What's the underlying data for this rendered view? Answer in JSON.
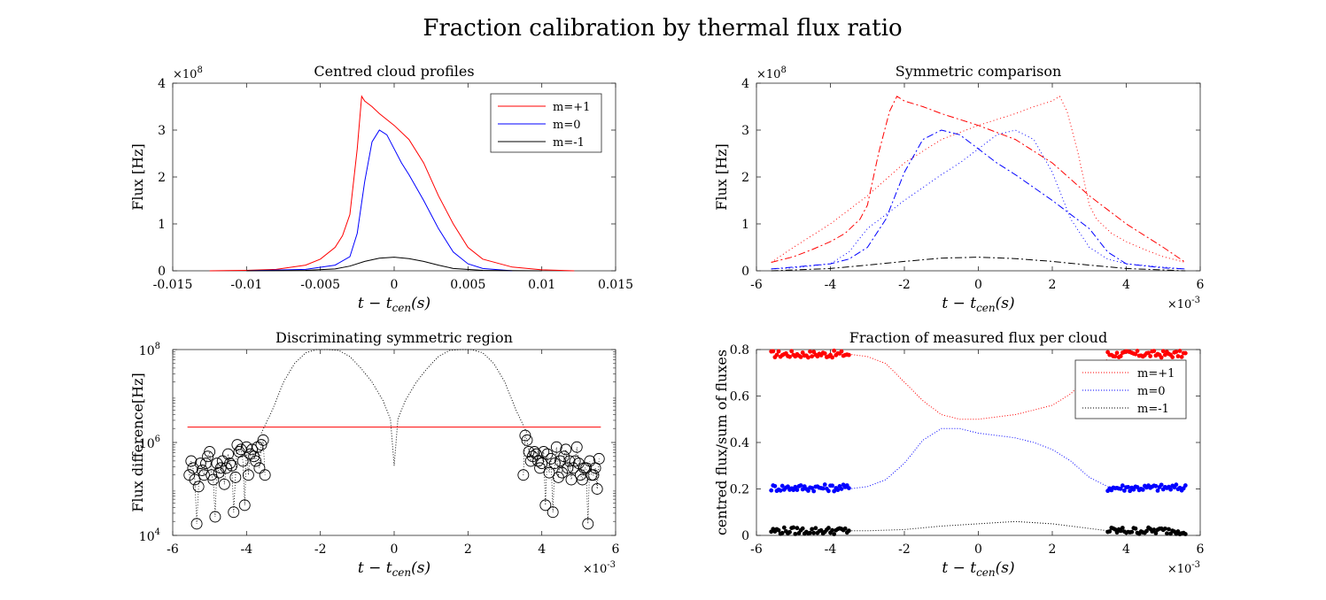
{
  "title": "Fraction calibration by thermal flux ratio",
  "chart_data": [
    {
      "type": "line",
      "title": "Centred cloud profiles",
      "xlabel_main": "t − t",
      "xlabel_sub": "cen",
      "xlabel_tail": "(s)",
      "ylabel": "Flux [Hz]",
      "xlim": [
        -0.015,
        0.015
      ],
      "ylim": [
        0,
        4
      ],
      "y_exponent": "×10",
      "y_exponent_power": "8",
      "xticks": [
        "-0.015",
        "-0.01",
        "-0.005",
        "0",
        "0.005",
        "0.01",
        "0.015"
      ],
      "xtick_values": [
        -0.015,
        -0.01,
        -0.005,
        0,
        0.005,
        0.01,
        0.015
      ],
      "yticks": [
        "0",
        "1",
        "2",
        "3",
        "4"
      ],
      "ytick_values": [
        0,
        1,
        2,
        3,
        4
      ],
      "legend": "top-right",
      "series": [
        {
          "name": "m=+1",
          "color": "#ff0000",
          "x": [
            -0.0125,
            -0.01,
            -0.008,
            -0.006,
            -0.005,
            -0.004,
            -0.0035,
            -0.003,
            -0.0025,
            -0.0022,
            -0.002,
            -0.0015,
            -0.001,
            0,
            0.001,
            0.002,
            0.003,
            0.004,
            0.005,
            0.006,
            0.008,
            0.01,
            0.0122
          ],
          "y": [
            0.0,
            0.01,
            0.03,
            0.12,
            0.25,
            0.5,
            0.75,
            1.2,
            2.6,
            3.72,
            3.62,
            3.5,
            3.35,
            3.1,
            2.8,
            2.3,
            1.6,
            1.0,
            0.5,
            0.25,
            0.08,
            0.02,
            0.0
          ]
        },
        {
          "name": "m=0",
          "color": "#0000ff",
          "x": [
            -0.01,
            -0.006,
            -0.004,
            -0.003,
            -0.0025,
            -0.002,
            -0.0015,
            -0.001,
            -0.0005,
            0,
            0.0005,
            0.001,
            0.002,
            0.003,
            0.004,
            0.005,
            0.006,
            0.008
          ],
          "y": [
            0.0,
            0.03,
            0.12,
            0.3,
            0.8,
            1.9,
            2.75,
            3.0,
            2.9,
            2.6,
            2.3,
            2.05,
            1.5,
            0.9,
            0.4,
            0.15,
            0.05,
            0.0
          ]
        },
        {
          "name": "m=-1",
          "color": "#000000",
          "x": [
            -0.01,
            -0.006,
            -0.004,
            -0.003,
            -0.002,
            -0.001,
            0,
            0.001,
            0.002,
            0.003,
            0.004,
            0.006,
            0.01
          ],
          "y": [
            0.0,
            0.01,
            0.04,
            0.1,
            0.2,
            0.27,
            0.29,
            0.26,
            0.2,
            0.12,
            0.05,
            0.01,
            0.0
          ]
        }
      ]
    },
    {
      "type": "line",
      "title": "Symmetric comparison",
      "xlabel_main": "t − t",
      "xlabel_sub": "cen",
      "xlabel_tail": "(s)",
      "ylabel": "Flux [Hz]",
      "xlim": [
        -6,
        6
      ],
      "ylim": [
        0,
        4
      ],
      "x_exponent": "×10",
      "x_exponent_power": "-3",
      "y_exponent": "×10",
      "y_exponent_power": "8",
      "xticks": [
        "-6",
        "-4",
        "-2",
        "0",
        "2",
        "4",
        "6"
      ],
      "xtick_values": [
        -6,
        -4,
        -2,
        0,
        2,
        4,
        6
      ],
      "yticks": [
        "0",
        "1",
        "2",
        "3",
        "4"
      ],
      "ytick_values": [
        0,
        1,
        2,
        3,
        4
      ],
      "series": [
        {
          "name": "",
          "color": "#ff0000",
          "dash": "8,3,2,3",
          "x": [
            -5.6,
            -5,
            -4.5,
            -4,
            -3.6,
            -3.2,
            -3,
            -2.7,
            -2.4,
            -2.2,
            -2,
            -1.5,
            -1,
            0,
            1,
            2,
            3,
            4,
            5,
            5.6
          ],
          "y": [
            0.18,
            0.3,
            0.45,
            0.62,
            0.8,
            1.1,
            1.4,
            2.5,
            3.4,
            3.72,
            3.62,
            3.5,
            3.35,
            3.1,
            2.8,
            2.3,
            1.6,
            1.0,
            0.5,
            0.18
          ]
        },
        {
          "name": "",
          "color": "#ff0000",
          "dash": "1,3",
          "x": [
            -5.6,
            -5,
            -4,
            -3,
            -2,
            -1,
            0,
            1,
            1.5,
            2,
            2.2,
            2.4,
            2.7,
            3,
            3.2,
            3.6,
            4,
            4.5,
            5,
            5.6
          ],
          "y": [
            0.18,
            0.5,
            1.0,
            1.6,
            2.3,
            2.8,
            3.1,
            3.35,
            3.5,
            3.62,
            3.72,
            3.4,
            2.5,
            1.4,
            1.1,
            0.8,
            0.62,
            0.45,
            0.3,
            0.18
          ]
        },
        {
          "name": "",
          "color": "#0000ff",
          "dash": "8,3,2,3",
          "x": [
            -5.6,
            -5,
            -4,
            -3.5,
            -3,
            -2.5,
            -2,
            -1.5,
            -1,
            -0.5,
            0,
            0.5,
            1,
            2,
            3,
            3.5,
            4,
            5,
            5.6
          ],
          "y": [
            0.04,
            0.08,
            0.15,
            0.25,
            0.5,
            1.1,
            2.1,
            2.8,
            3.0,
            2.9,
            2.6,
            2.3,
            2.05,
            1.5,
            0.9,
            0.4,
            0.15,
            0.06,
            0.04
          ]
        },
        {
          "name": "",
          "color": "#0000ff",
          "dash": "1,3",
          "x": [
            -5.6,
            -5,
            -4,
            -3.5,
            -3,
            -2,
            -1,
            -0.5,
            0,
            0.5,
            1,
            1.5,
            2,
            2.5,
            3,
            3.5,
            4,
            5,
            5.6
          ],
          "y": [
            0.04,
            0.06,
            0.15,
            0.4,
            0.9,
            1.5,
            2.05,
            2.3,
            2.6,
            2.9,
            3.0,
            2.8,
            2.1,
            1.1,
            0.5,
            0.25,
            0.15,
            0.08,
            0.04
          ]
        },
        {
          "name": "",
          "color": "#000000",
          "dash": "8,3,2,3",
          "x": [
            -5.6,
            -4,
            -3,
            -2,
            -1,
            0,
            1,
            2,
            3,
            4,
            5.6
          ],
          "y": [
            0.0,
            0.05,
            0.12,
            0.2,
            0.27,
            0.29,
            0.26,
            0.2,
            0.12,
            0.05,
            0.0
          ]
        }
      ]
    },
    {
      "type": "scatter",
      "title": "Discriminating symmetric region",
      "xlabel_main": "t − t",
      "xlabel_sub": "cen",
      "xlabel_tail": "(s)",
      "ylabel": "Flux difference[Hz]",
      "xlim": [
        -6,
        6
      ],
      "ylog": true,
      "ylim_log10": [
        4,
        8
      ],
      "x_exponent": "×10",
      "x_exponent_power": "-3",
      "xticks": [
        "-6",
        "-4",
        "-2",
        "0",
        "2",
        "4",
        "6"
      ],
      "xtick_values": [
        -6,
        -4,
        -2,
        0,
        2,
        4,
        6
      ],
      "yticks": [
        {
          "base": "10",
          "exp": "4",
          "log": 4
        },
        {
          "base": "10",
          "exp": "6",
          "log": 6
        },
        {
          "base": "10",
          "exp": "8",
          "log": 8
        }
      ],
      "threshold": {
        "color": "#ff0000",
        "x": [
          -5.6,
          5.6
        ],
        "log10_y": 6.33
      },
      "dotted_curve_log10": {
        "x": [
          -3.6,
          -3.3,
          -3,
          -2.7,
          -2.4,
          -2.1,
          -1.8,
          -1.5,
          -1.2,
          -0.9,
          -0.6,
          -0.3,
          -0.1,
          0,
          0.1,
          0.3,
          0.6,
          0.9,
          1.2,
          1.5,
          1.8,
          2.1,
          2.4,
          2.7,
          3,
          3.3,
          3.6
        ],
        "y": [
          6.2,
          6.7,
          7.3,
          7.7,
          7.93,
          8.0,
          8.0,
          7.98,
          7.85,
          7.6,
          7.3,
          6.9,
          6.5,
          5.5,
          6.5,
          6.9,
          7.3,
          7.6,
          7.85,
          7.98,
          8.0,
          8.0,
          7.93,
          7.7,
          7.3,
          6.7,
          6.2
        ]
      },
      "circles_log10": {
        "x": [
          -5.55,
          -5.5,
          -5.45,
          -5.4,
          -5.35,
          -5.3,
          -5.25,
          -5.2,
          -5.15,
          -5.1,
          -5.05,
          -5.0,
          -4.95,
          -4.9,
          -4.85,
          -4.8,
          -4.75,
          -4.7,
          -4.65,
          -4.6,
          -4.55,
          -4.5,
          -4.45,
          -4.4,
          -4.35,
          -4.3,
          -4.25,
          -4.2,
          -4.15,
          -4.1,
          -4.05,
          -4.0,
          -3.95,
          -3.9,
          -3.85,
          -3.8,
          -3.75,
          -3.7,
          -3.65,
          -3.6,
          -3.55,
          -3.5,
          3.5,
          3.55,
          3.6,
          3.65,
          3.7,
          3.75,
          3.8,
          3.85,
          3.9,
          3.95,
          4.0,
          4.05,
          4.1,
          4.15,
          4.2,
          4.25,
          4.3,
          4.35,
          4.4,
          4.45,
          4.5,
          4.55,
          4.6,
          4.65,
          4.7,
          4.75,
          4.8,
          4.85,
          4.9,
          4.95,
          5.0,
          5.05,
          5.1,
          5.15,
          5.2,
          5.25,
          5.3,
          5.35,
          5.4,
          5.45,
          5.5,
          5.55
        ],
        "y": [
          5.3,
          5.6,
          5.45,
          5.2,
          4.25,
          5.05,
          5.55,
          5.4,
          5.3,
          5.55,
          5.7,
          5.8,
          5.3,
          5.2,
          4.4,
          5.55,
          5.35,
          5.45,
          5.6,
          5.1,
          5.45,
          5.75,
          5.55,
          5.5,
          4.5,
          5.25,
          5.95,
          5.8,
          5.85,
          5.6,
          4.65,
          5.9,
          5.3,
          5.75,
          5.85,
          5.7,
          5.6,
          5.9,
          5.45,
          5.95,
          6.05,
          5.3,
          5.3,
          6.15,
          6.05,
          5.8,
          5.6,
          5.7,
          5.8,
          5.75,
          5.6,
          5.45,
          5.55,
          5.8,
          4.65,
          5.75,
          5.35,
          5.65,
          4.5,
          5.55,
          5.9,
          5.25,
          5.6,
          5.35,
          5.7,
          5.85,
          5.45,
          5.6,
          5.2,
          5.45,
          5.6,
          5.9,
          5.55,
          5.3,
          5.2,
          5.45,
          5.45,
          4.25,
          5.6,
          5.3,
          5.3,
          5.45,
          5.0,
          5.65
        ]
      }
    },
    {
      "type": "scatter",
      "title": "Fraction of measured flux per cloud",
      "xlabel_main": "t − t",
      "xlabel_sub": "cen",
      "xlabel_tail": "(s)",
      "ylabel": "centred flux/sum of fluxes",
      "xlim": [
        -6,
        6
      ],
      "ylim": [
        0,
        0.8
      ],
      "x_exponent": "×10",
      "x_exponent_power": "-3",
      "xticks": [
        "-6",
        "-4",
        "-2",
        "0",
        "2",
        "4",
        "6"
      ],
      "xtick_values": [
        -6,
        -4,
        -2,
        0,
        2,
        4,
        6
      ],
      "yticks": [
        "0",
        "0.2",
        "0.4",
        "0.6",
        "0.8"
      ],
      "ytick_values": [
        0,
        0.2,
        0.4,
        0.6,
        0.8
      ],
      "legend": "top-right",
      "series": [
        {
          "name": "m=+1",
          "color": "#ff0000",
          "level": 0.78,
          "curve_x": [
            -3.5,
            -3,
            -2.5,
            -2,
            -1.5,
            -1,
            -0.5,
            0,
            0.5,
            1,
            1.5,
            2,
            2.5,
            3,
            3.5
          ],
          "curve_y": [
            0.78,
            0.77,
            0.74,
            0.66,
            0.58,
            0.52,
            0.5,
            0.5,
            0.51,
            0.52,
            0.54,
            0.56,
            0.61,
            0.69,
            0.76
          ]
        },
        {
          "name": "m=0",
          "color": "#0000ff",
          "level": 0.205,
          "curve_x": [
            -3.5,
            -3,
            -2.5,
            -2,
            -1.5,
            -1,
            -0.5,
            0,
            0.5,
            1,
            1.5,
            2,
            2.5,
            3,
            3.5
          ],
          "curve_y": [
            0.2,
            0.21,
            0.24,
            0.31,
            0.41,
            0.46,
            0.46,
            0.44,
            0.43,
            0.42,
            0.4,
            0.37,
            0.32,
            0.25,
            0.21
          ]
        },
        {
          "name": "m=-1",
          "color": "#000000",
          "level": 0.02,
          "curve_x": [
            -3.5,
            -3,
            -2,
            -1,
            0,
            1,
            2,
            3,
            3.5
          ],
          "curve_y": [
            0.02,
            0.02,
            0.025,
            0.04,
            0.05,
            0.06,
            0.05,
            0.03,
            0.02
          ]
        }
      ]
    }
  ]
}
